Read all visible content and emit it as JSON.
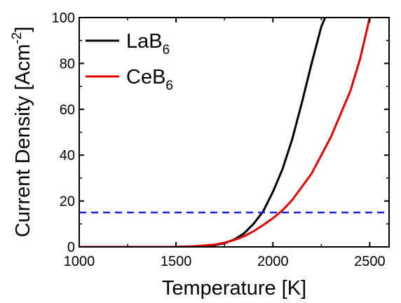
{
  "chart_data": {
    "type": "line",
    "title": "",
    "xlabel": "Temperature [K]",
    "ylabel": {
      "main": "Current Density [Acm",
      "superscript": "-2",
      "close": "]"
    },
    "xlim": [
      1000,
      2600
    ],
    "ylim": [
      0,
      100
    ],
    "xticks": [
      1000,
      1500,
      2000,
      2500
    ],
    "yticks": [
      0,
      20,
      40,
      60,
      80,
      100
    ],
    "xtick_labels": [
      "1000",
      "1500",
      "2000",
      "2500"
    ],
    "ytick_labels": [
      "0",
      "20",
      "40",
      "60",
      "80",
      "100"
    ],
    "grid": false,
    "legend_position": "top-left",
    "series": [
      {
        "name": "LaB",
        "subscript": "6",
        "color": "#000000",
        "x": [
          1500,
          1600,
          1700,
          1750,
          1800,
          1850,
          1900,
          1950,
          2000,
          2050,
          2100,
          2150,
          2200,
          2250,
          2270
        ],
        "y": [
          0.0,
          0.2,
          0.8,
          1.6,
          3.2,
          5.8,
          10.0,
          15.5,
          24.0,
          34.0,
          47.0,
          63.0,
          80.0,
          96.0,
          100.0
        ]
      },
      {
        "name": "CeB",
        "subscript": "6",
        "color": "#e00000",
        "x": [
          1500,
          1600,
          1700,
          1750,
          1800,
          1850,
          1900,
          1950,
          2000,
          2050,
          2100,
          2200,
          2300,
          2400,
          2450,
          2500
        ],
        "y": [
          0.0,
          0.3,
          1.0,
          1.8,
          3.0,
          4.6,
          6.8,
          9.5,
          12.5,
          16.0,
          20.5,
          32.0,
          48.0,
          68.0,
          82.0,
          100.0
        ]
      }
    ],
    "reference_lines": [
      {
        "orientation": "horizontal",
        "y": 15,
        "style": "dashed",
        "color": "#1f1fe0"
      }
    ]
  }
}
